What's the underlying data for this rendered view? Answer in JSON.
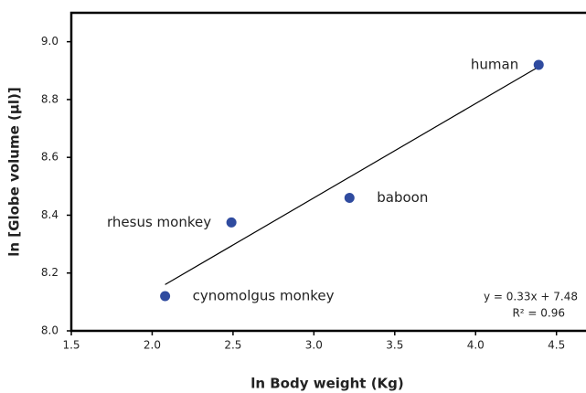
{
  "chart_data": {
    "type": "scatter",
    "x_label": "ln Body weight (Kg)",
    "y_label": "ln [Globe volume (µl)]",
    "series": [
      {
        "name": null,
        "color": "#2f4b9f",
        "labels": [
          "cynomolgus monkey",
          "rhesus monkey",
          "baboon",
          "human"
        ],
        "x": [
          2.08,
          2.49,
          3.22,
          4.39
        ],
        "values": [
          8.12,
          8.375,
          8.46,
          8.92
        ]
      }
    ],
    "trendline": {
      "color": "#000000",
      "x": [
        2.08,
        4.38
      ],
      "values": [
        8.16,
        8.91
      ]
    },
    "annotations": [
      "y = 0.33x + 7.48",
      "R² = 0.96"
    ],
    "xlim": [
      1.5,
      4.66
    ],
    "ylim": [
      8.0,
      9.1
    ],
    "xticks": [
      1.5,
      {
        "value": 2,
        "label": "2.0"
      },
      2.5,
      {
        "value": 3,
        "label": "3.0"
      },
      3.5,
      {
        "value": 4,
        "label": "4.0"
      },
      4.5
    ],
    "yticks": [
      {
        "value": 8,
        "label": "8.0"
      },
      8.2,
      8.4,
      8.6,
      8.8,
      {
        "value": 9,
        "label": "9.0"
      }
    ],
    "grid": false
  }
}
